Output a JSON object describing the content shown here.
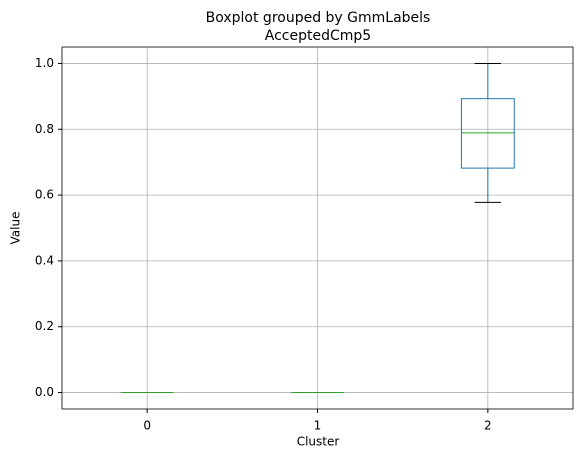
{
  "chart_data": {
    "type": "box",
    "title": "Boxplot grouped by GmmLabels",
    "subtitle": "AcceptedCmp5",
    "xlabel": "Cluster",
    "ylabel": "Value",
    "categories": [
      "0",
      "1",
      "2"
    ],
    "boxes": [
      {
        "whislo": 0,
        "q1": 0,
        "med": 0,
        "q3": 0,
        "whishi": 0
      },
      {
        "whislo": 0,
        "q1": 0,
        "med": 0,
        "q3": 0,
        "whishi": 0
      },
      {
        "whislo": 0.578,
        "q1": 0.682,
        "med": 0.789,
        "q3": 0.893,
        "whishi": 1
      }
    ],
    "color": "#1f77b4",
    "median_color": "#2ca02c",
    "cap_color": "#000000",
    "ylim": [
      -0.05,
      1.05
    ],
    "yticks": [
      {
        "value": 0,
        "label": "0.0"
      },
      0.2,
      0.4,
      0.6,
      0.8,
      {
        "value": 1,
        "label": "1.0"
      }
    ],
    "grid": true
  }
}
